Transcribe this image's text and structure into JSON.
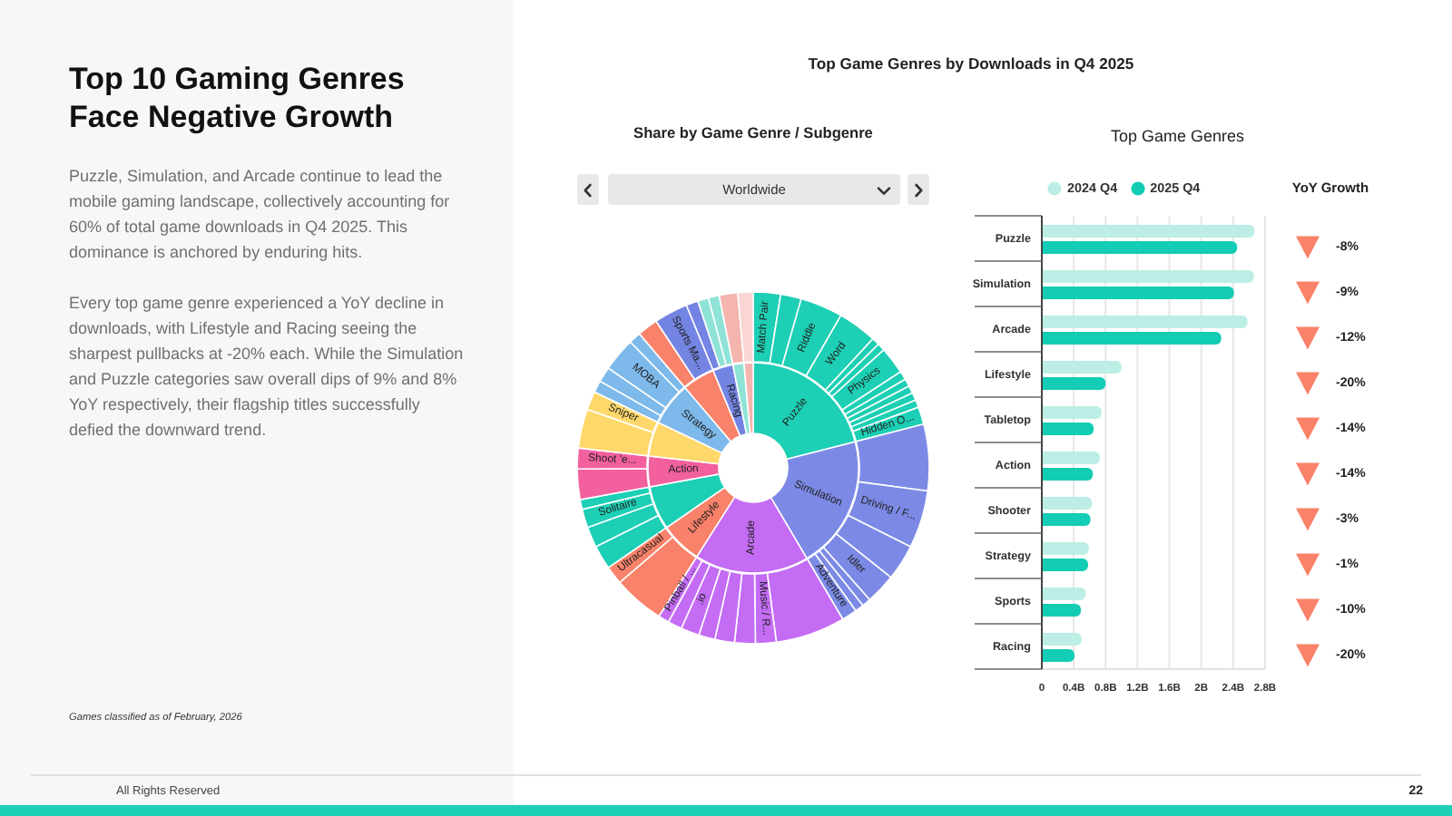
{
  "chart_data": [
    {
      "type": "other",
      "title": "Top 10 Gaming Genres Face Negative Growth",
      "annotations": [
        "Puzzle, Simulation, and Arcade continue to lead the mobile gaming landscape, collectively accounting for 60% of total game downloads in Q4 2025. This dominance is anchored by enduring hits.",
        "Every top game genre experienced a YoY decline in downloads, with Lifestyle and Racing seeing the sharpest pullbacks at -20% each. While the Simulation and Puzzle categories saw overall dips of 9% and 8% YoY respectively, their flagship titles successfully defied the downward trend.",
        "Games classified as of February, 2026"
      ]
    },
    {
      "type": "other",
      "title": "Top Game Genres by Downloads in Q4 2025"
    },
    {
      "type": "donut",
      "title": "Share by Game Genre / Subgenre",
      "annotations": [
        "Worldwide"
      ],
      "categories": [
        "Puzzle",
        "Simulation",
        "Arcade",
        "Lifestyle",
        null,
        "Action",
        null,
        "Strategy",
        null,
        "Racing",
        null,
        null
      ],
      "values": [
        21.0,
        20.5,
        17.5,
        6.4,
        6.7,
        4.7,
        5.3,
        6.7,
        5.0,
        3.1,
        1.7,
        1.4
      ],
      "colors": [
        "#1dcfb4",
        "#7c8ae6",
        "#c46cf4",
        "#f9826a",
        "#1dcfb4",
        "#f2609e",
        "#ffd86b",
        "#7db9ea",
        "#f9826a",
        "#7484e2",
        "#8fe3d6",
        "#f4b5ae"
      ]
    },
    {
      "type": "donut",
      "categories": [
        "Match Pair",
        null,
        "Riddle",
        "Word",
        null,
        null,
        "Physics",
        null,
        null,
        null,
        null,
        null,
        "Hidden O...",
        null,
        "Driving / F...",
        null,
        "Idler",
        null,
        null,
        "Adventure",
        null,
        "Music / R...",
        null,
        null,
        null,
        ".io",
        null,
        "Pinball / ...",
        null,
        "Ultracasual",
        null,
        null,
        "Solitaire",
        null,
        null,
        "Shoot 'e...",
        null,
        "Sniper",
        null,
        null,
        "MOBA",
        null,
        null,
        "Sports Ma...",
        null,
        null,
        null,
        null,
        null
      ],
      "values": [
        2.5,
        1.9,
        3.9,
        3.6,
        0.7,
        0.7,
        2.5,
        0.8,
        0.7,
        0.7,
        0.7,
        0.7,
        1.6,
        6.1,
        5.3,
        3.3,
        2.8,
        0.8,
        0.8,
        1.4,
        6.4,
        1.9,
        1.9,
        1.8,
        1.5,
        1.7,
        1.3,
        1.0,
        4.7,
        1.7,
        2.2,
        1.9,
        1.7,
        0.9,
        2.8,
        1.9,
        3.6,
        1.7,
        1.1,
        1.4,
        3.1,
        1.1,
        1.9,
        3.1,
        1.1,
        1.0,
        1.0,
        1.7,
        1.4
      ],
      "colors": [
        "#1dcfb4",
        "#1dcfb4",
        "#1dcfb4",
        "#1dcfb4",
        "#1dcfb4",
        "#1dcfb4",
        "#1dcfb4",
        "#1dcfb4",
        "#1dcfb4",
        "#1dcfb4",
        "#1dcfb4",
        "#1dcfb4",
        "#1dcfb4",
        "#7c8ae6",
        "#7c8ae6",
        "#7c8ae6",
        "#7c8ae6",
        "#7c8ae6",
        "#7c8ae6",
        "#7c8ae6",
        "#c46cf4",
        "#c46cf4",
        "#c46cf4",
        "#c46cf4",
        "#c46cf4",
        "#c46cf4",
        "#c46cf4",
        "#c46cf4",
        "#f9826a",
        "#f9826a",
        "#1dcfb4",
        "#1dcfb4",
        "#1dcfb4",
        "#1dcfb4",
        "#f2609e",
        "#f2609e",
        "#ffd86b",
        "#ffd86b",
        "#7db9ea",
        "#7db9ea",
        "#7db9ea",
        "#7db9ea",
        "#f9826a",
        "#7484e2",
        "#7484e2",
        "#8fe3d6",
        "#8fe3d6",
        "#f4b5ae",
        "#f9d6d2"
      ]
    },
    {
      "type": "bar",
      "title": "Top Game Genres",
      "orientation": "horizontal",
      "categories": [
        "Puzzle",
        "Simulation",
        "Arcade",
        "Lifestyle",
        "Tabletop",
        "Action",
        "Shooter",
        "Strategy",
        "Sports",
        "Racing"
      ],
      "series": [
        {
          "name": "2024 Q4",
          "color": "#bdeee5",
          "values": [
            2.67,
            2.66,
            2.58,
            1.0,
            0.75,
            0.73,
            0.63,
            0.59,
            0.55,
            0.5
          ]
        },
        {
          "name": "2025 Q4",
          "color": "#12cdb3",
          "values": [
            2.45,
            2.41,
            2.25,
            0.8,
            0.65,
            0.64,
            0.61,
            0.58,
            0.49,
            0.41
          ]
        }
      ],
      "xlim": [
        0,
        2.8
      ],
      "xticks": [
        0,
        {
          "value": 0.4,
          "label": "0.4B"
        },
        {
          "value": 0.8,
          "label": "0.8B"
        },
        {
          "value": 1.2,
          "label": "1.2B"
        },
        {
          "value": 1.6,
          "label": "1.6B"
        },
        {
          "value": 2,
          "label": "2B"
        },
        {
          "value": 2.4,
          "label": "2.4B"
        },
        {
          "value": 2.8,
          "label": "2.8B"
        }
      ],
      "grid": "x",
      "legend": "top left"
    },
    {
      "type": "other",
      "title": "YoY Growth",
      "annotations": [
        "-8%",
        "-9%",
        "-12%",
        "-20%",
        "-14%",
        "-14%",
        "-3%",
        "-1%",
        "-10%",
        "-20%"
      ]
    },
    {
      "type": "other",
      "annotations": [
        "All Rights Reserved",
        "22"
      ]
    }
  ]
}
